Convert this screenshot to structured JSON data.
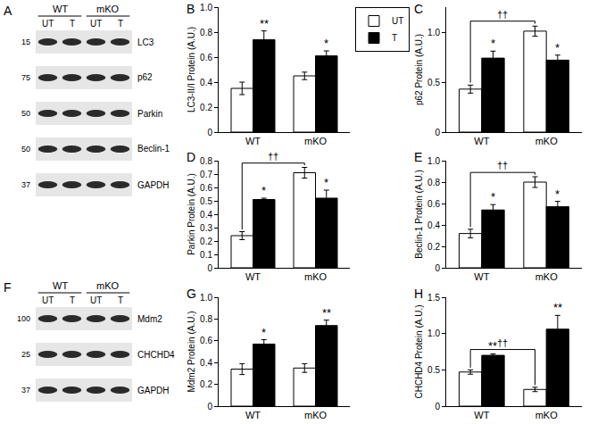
{
  "chart_data": [
    {
      "panel": "B",
      "type": "bar",
      "categories": [
        "WT",
        "mKO"
      ],
      "ylabel": "LC3-II/I Protein (A.U.)",
      "ylim": [
        0,
        1
      ],
      "yticks": [
        0,
        0.2,
        0.4,
        0.6,
        0.8,
        {
          "value": 1,
          "label": "1.0"
        }
      ],
      "grid": false,
      "legend": "top right",
      "series": [
        {
          "name": "UT",
          "color": "#ffffff",
          "values": [
            0.35,
            0.45
          ],
          "errors": [
            0.05,
            0.03
          ]
        },
        {
          "name": "T",
          "color": "#000000",
          "values": [
            0.74,
            0.61
          ],
          "errors": [
            0.07,
            0.04
          ]
        }
      ],
      "annotations": [
        {
          "text": "**",
          "category": "WT",
          "series": "T"
        },
        {
          "text": "*",
          "category": "mKO",
          "series": "T"
        }
      ]
    },
    {
      "panel": "C",
      "type": "bar",
      "categories": [
        "WT",
        "mKO"
      ],
      "ylabel": "p62 Protein (A.U.)",
      "ylim": [
        0,
        1.25
      ],
      "yticks": [
        0,
        0.5,
        {
          "value": 1,
          "label": "1.0"
        }
      ],
      "grid": false,
      "series": [
        {
          "name": "UT",
          "color": "#ffffff",
          "values": [
            0.43,
            1.01
          ],
          "errors": [
            0.04,
            0.05
          ]
        },
        {
          "name": "T",
          "color": "#000000",
          "values": [
            0.74,
            0.72
          ],
          "errors": [
            0.07,
            0.05
          ]
        }
      ],
      "annotations": [
        {
          "text": "*",
          "category": "WT",
          "series": "T"
        },
        {
          "text": "*",
          "category": "mKO",
          "series": "T"
        }
      ],
      "brackets": [
        {
          "text": "††",
          "series": "UT",
          "from": "WT",
          "to": "mKO"
        }
      ]
    },
    {
      "panel": "D",
      "type": "bar",
      "categories": [
        "WT",
        "mKO"
      ],
      "ylabel": "Parkin Protein (A.U.)",
      "ylim": [
        0,
        0.8
      ],
      "yticks": [
        0,
        0.1,
        0.2,
        0.3,
        0.4,
        0.5,
        0.6,
        0.7,
        0.8
      ],
      "grid": false,
      "series": [
        {
          "name": "UT",
          "color": "#ffffff",
          "values": [
            0.24,
            0.71
          ],
          "errors": [
            0.03,
            0.04
          ]
        },
        {
          "name": "T",
          "color": "#000000",
          "values": [
            0.51,
            0.52
          ],
          "errors": [
            0.01,
            0.06
          ]
        }
      ],
      "annotations": [
        {
          "text": "*",
          "category": "WT",
          "series": "T"
        },
        {
          "text": "*",
          "category": "mKO",
          "series": "T"
        }
      ],
      "brackets": [
        {
          "text": "††",
          "series": "UT",
          "from": "WT",
          "to": "mKO"
        }
      ]
    },
    {
      "panel": "E",
      "type": "bar",
      "categories": [
        "WT",
        "mKO"
      ],
      "ylabel": "Beclin-1 Protein (A.U.)",
      "ylim": [
        0,
        1
      ],
      "yticks": [
        0,
        0.2,
        0.4,
        0.6,
        0.8,
        {
          "value": 1,
          "label": "1.0"
        }
      ],
      "grid": false,
      "series": [
        {
          "name": "UT",
          "color": "#ffffff",
          "values": [
            0.32,
            0.8
          ],
          "errors": [
            0.04,
            0.05
          ]
        },
        {
          "name": "T",
          "color": "#000000",
          "values": [
            0.54,
            0.57
          ],
          "errors": [
            0.05,
            0.05
          ]
        }
      ],
      "annotations": [
        {
          "text": "*",
          "category": "WT",
          "series": "T"
        },
        {
          "text": "*",
          "category": "mKO",
          "series": "T"
        }
      ],
      "brackets": [
        {
          "text": "††",
          "series": "UT",
          "from": "WT",
          "to": "mKO"
        }
      ]
    },
    {
      "panel": "G",
      "type": "bar",
      "categories": [
        "WT",
        "mKO"
      ],
      "ylabel": "Mdm2 Protein (A.U.)",
      "ylim": [
        0,
        1
      ],
      "yticks": [
        0,
        0.2,
        0.4,
        0.6,
        0.8,
        {
          "value": 1,
          "label": "1.0"
        }
      ],
      "grid": false,
      "series": [
        {
          "name": "UT",
          "color": "#ffffff",
          "values": [
            0.34,
            0.35
          ],
          "errors": [
            0.05,
            0.04
          ]
        },
        {
          "name": "T",
          "color": "#000000",
          "values": [
            0.57,
            0.74
          ],
          "errors": [
            0.04,
            0.05
          ]
        }
      ],
      "annotations": [
        {
          "text": "*",
          "category": "WT",
          "series": "T"
        },
        {
          "text": "**",
          "category": "mKO",
          "series": "T"
        }
      ]
    },
    {
      "panel": "H",
      "type": "bar",
      "categories": [
        "WT",
        "mKO"
      ],
      "ylabel": "CHCHD4 Protein (A.U.)",
      "ylim": [
        0,
        1.5
      ],
      "yticks": [
        0,
        0.5,
        {
          "value": 1,
          "label": "1.0"
        },
        1.5
      ],
      "grid": false,
      "series": [
        {
          "name": "UT",
          "color": "#ffffff",
          "values": [
            0.47,
            0.23
          ],
          "errors": [
            0.03,
            0.03
          ]
        },
        {
          "name": "T",
          "color": "#000000",
          "values": [
            0.7,
            1.06
          ],
          "errors": [
            0.02,
            0.19
          ]
        }
      ],
      "annotations": [
        {
          "text": "**",
          "category": "WT",
          "series": "T"
        },
        {
          "text": "**",
          "category": "mKO",
          "series": "T"
        }
      ],
      "brackets": [
        {
          "text": "††",
          "series": "UT",
          "from": "WT",
          "to": "mKO"
        }
      ]
    }
  ],
  "blots": [
    {
      "panel": "A",
      "groups": [
        {
          "label": "WT",
          "lanes": [
            "UT",
            "T"
          ]
        },
        {
          "label": "mKO",
          "lanes": [
            "UT",
            "T"
          ]
        }
      ],
      "rows": [
        {
          "label": "LC3",
          "mw": 15
        },
        {
          "label": "p62",
          "mw": 75
        },
        {
          "label": "Parkin",
          "mw": 50
        },
        {
          "label": "Beclin-1",
          "mw": 50
        },
        {
          "label": "GAPDH",
          "mw": 37
        }
      ]
    },
    {
      "panel": "F",
      "groups": [
        {
          "label": "WT",
          "lanes": [
            "UT",
            "T"
          ]
        },
        {
          "label": "mKO",
          "lanes": [
            "UT",
            "T"
          ]
        }
      ],
      "rows": [
        {
          "label": "Mdm2",
          "mw": 100
        },
        {
          "label": "CHCHD4",
          "mw": 25
        },
        {
          "label": "GAPDH",
          "mw": 37
        }
      ]
    }
  ]
}
